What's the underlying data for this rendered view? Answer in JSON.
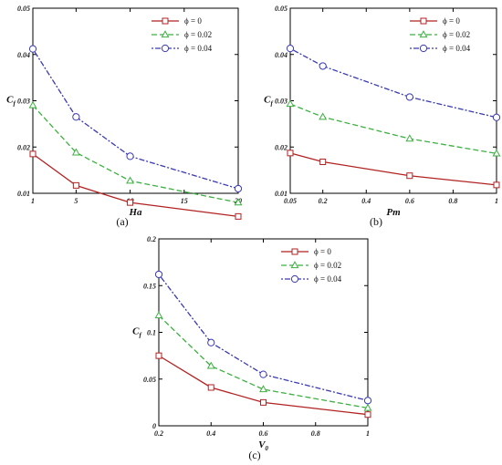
{
  "figure": {
    "captions": [
      "(a)",
      "(b)",
      "(c)"
    ]
  },
  "colors": {
    "phi0": "#b22222",
    "phi002": "#3cb040",
    "phi004": "#3a3ab0"
  },
  "chart_data": [
    {
      "type": "line",
      "caption": "(a)",
      "xlabel": "Ha",
      "ylabel": "Cf",
      "xlim": [
        1,
        20
      ],
      "ylim": [
        0.01,
        0.05
      ],
      "xticks": [
        1,
        5,
        10,
        15,
        20
      ],
      "xtick_labels": [
        "1",
        "5",
        "10",
        "15",
        "20"
      ],
      "yticks": [
        0.01,
        0.02,
        0.03,
        0.04,
        0.05
      ],
      "ytick_labels": [
        "0.01",
        "0.02",
        "0.03",
        "0.04",
        "0.05"
      ],
      "legend_position": "top-right",
      "x": [
        1,
        5,
        10,
        20
      ],
      "series": [
        {
          "name": "ϕ = 0",
          "values": [
            0.0185,
            0.0117,
            0.008,
            0.005
          ]
        },
        {
          "name": "ϕ = 0.02",
          "values": [
            0.029,
            0.0188,
            0.0127,
            0.008
          ]
        },
        {
          "name": "ϕ = 0.04",
          "values": [
            0.0412,
            0.0265,
            0.018,
            0.011
          ]
        }
      ]
    },
    {
      "type": "line",
      "caption": "(b)",
      "xlabel": "Pm",
      "ylabel": "Cf",
      "xlim": [
        0.05,
        1
      ],
      "ylim": [
        0.01,
        0.05
      ],
      "xticks": [
        0.05,
        0.2,
        0.4,
        0.6,
        0.8,
        1
      ],
      "xtick_labels": [
        "0.05",
        "0.2",
        "0.4",
        "0.6",
        "0.8",
        "1"
      ],
      "yticks": [
        0.01,
        0.02,
        0.03,
        0.04,
        0.05
      ],
      "ytick_labels": [
        "0.01",
        "0.02",
        "0.03",
        "0.04",
        "0.05"
      ],
      "legend_position": "top-right",
      "x": [
        0.05,
        0.2,
        0.6,
        1
      ],
      "series": [
        {
          "name": "ϕ = 0",
          "values": [
            0.0187,
            0.0168,
            0.0138,
            0.0118
          ]
        },
        {
          "name": "ϕ = 0.02",
          "values": [
            0.0293,
            0.0265,
            0.0218,
            0.0186
          ]
        },
        {
          "name": "ϕ = 0.04",
          "values": [
            0.0413,
            0.0375,
            0.0308,
            0.0264
          ]
        }
      ]
    },
    {
      "type": "line",
      "caption": "(c)",
      "xlabel": "V0",
      "ylabel": "Cf",
      "xlim": [
        0.2,
        1
      ],
      "ylim": [
        0,
        0.2
      ],
      "xticks": [
        0.2,
        0.4,
        0.6,
        0.8,
        1
      ],
      "xtick_labels": [
        "0.2",
        "0.4",
        "0.6",
        "0.8",
        "1"
      ],
      "yticks": [
        0,
        0.05,
        0.1,
        0.15,
        0.2
      ],
      "ytick_labels": [
        "0",
        "0.05",
        "0.1",
        "0.15",
        "0.2"
      ],
      "legend_position": "top-right",
      "x": [
        0.2,
        0.4,
        0.6,
        1
      ],
      "series": [
        {
          "name": "ϕ = 0",
          "values": [
            0.075,
            0.041,
            0.025,
            0.012
          ]
        },
        {
          "name": "ϕ = 0.02",
          "values": [
            0.118,
            0.064,
            0.039,
            0.019
          ]
        },
        {
          "name": "ϕ = 0.04",
          "values": [
            0.162,
            0.089,
            0.055,
            0.027
          ]
        }
      ]
    }
  ]
}
